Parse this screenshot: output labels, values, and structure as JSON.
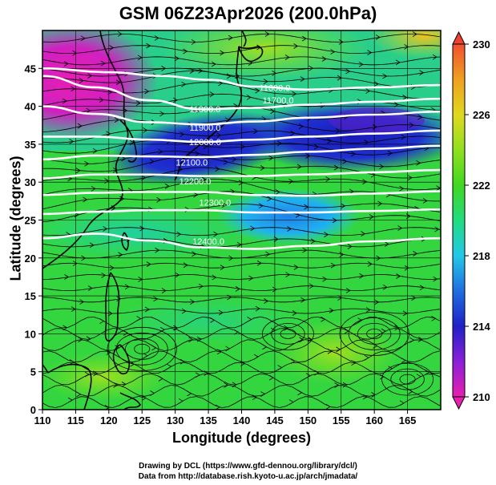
{
  "chart_data": {
    "type": "heatmap",
    "title": "GSM 06Z23Apr2026 (200.0hPa)",
    "xlabel": "Longitude (degrees)",
    "ylabel": "Latitude  (degrees)",
    "xlim": [
      110,
      170
    ],
    "ylim": [
      0,
      50
    ],
    "x_ticks": [
      110,
      115,
      120,
      125,
      130,
      135,
      140,
      145,
      150,
      155,
      160,
      165
    ],
    "y_ticks": [
      0,
      5,
      10,
      15,
      20,
      25,
      30,
      35,
      40,
      45
    ],
    "colorbar": {
      "min": 210,
      "max": 230,
      "ticks": [
        210,
        214,
        218,
        222,
        226,
        230
      ],
      "colors": [
        "#e81fb0",
        "#8a1fd8",
        "#2020c8",
        "#1e6ee0",
        "#22c8e8",
        "#22dc80",
        "#40d820",
        "#90e020",
        "#e0d820",
        "#f0a020",
        "#f05030"
      ]
    },
    "contours": [
      {
        "label": "11600.0",
        "label_lon": 145,
        "label_lat": 42,
        "points": [
          [
            110,
            45
          ],
          [
            120,
            44.5
          ],
          [
            128,
            44
          ],
          [
            135,
            43.5
          ],
          [
            142,
            42.6
          ],
          [
            150,
            42.2
          ],
          [
            160,
            42.5
          ],
          [
            170,
            42.8
          ]
        ]
      },
      {
        "label": "11700.0",
        "label_lon": 145.5,
        "label_lat": 40.4,
        "points": [
          [
            110,
            44
          ],
          [
            118,
            42.5
          ],
          [
            126,
            40.8
          ],
          [
            134,
            39.6
          ],
          [
            142,
            39.8
          ],
          [
            150,
            40.2
          ],
          [
            160,
            40.6
          ],
          [
            170,
            41
          ]
        ]
      },
      {
        "label": "11800.0",
        "label_lon": 134.5,
        "label_lat": 39.2,
        "points": [
          [
            110,
            40
          ],
          [
            118,
            39
          ],
          [
            126,
            37.9
          ],
          [
            134,
            37.6
          ],
          [
            142,
            38
          ],
          [
            150,
            38.5
          ],
          [
            160,
            38.9
          ],
          [
            170,
            39.3
          ]
        ]
      },
      {
        "label": "11900.0",
        "label_lon": 134.5,
        "label_lat": 36.8,
        "points": [
          [
            110,
            36
          ],
          [
            118,
            36
          ],
          [
            126,
            35.6
          ],
          [
            134,
            35.3
          ],
          [
            142,
            35.6
          ],
          [
            150,
            36
          ],
          [
            160,
            36.4
          ],
          [
            170,
            36.8
          ]
        ]
      },
      {
        "label": "12000.0",
        "label_lon": 134.5,
        "label_lat": 34.9,
        "points": [
          [
            110,
            33
          ],
          [
            118,
            33.5
          ],
          [
            126,
            33.4
          ],
          [
            134,
            33.3
          ],
          [
            142,
            33.6
          ],
          [
            150,
            34
          ],
          [
            160,
            34.4
          ],
          [
            170,
            34.8
          ]
        ]
      },
      {
        "label": "12100.0",
        "label_lon": 132.5,
        "label_lat": 32.2,
        "points": [
          [
            110,
            30.5
          ],
          [
            118,
            31
          ],
          [
            126,
            31
          ],
          [
            134,
            30.8
          ],
          [
            142,
            30.8
          ],
          [
            150,
            31
          ],
          [
            160,
            31.3
          ],
          [
            170,
            31.6
          ]
        ]
      },
      {
        "label": "12200.0",
        "label_lon": 133,
        "label_lat": 29.7,
        "points": [
          [
            110,
            28.3
          ],
          [
            118,
            28.6
          ],
          [
            126,
            28.7
          ],
          [
            134,
            28.7
          ],
          [
            142,
            28.3
          ],
          [
            150,
            28.2
          ],
          [
            160,
            28.5
          ],
          [
            170,
            28.8
          ]
        ]
      },
      {
        "label": "12300.0",
        "label_lon": 136,
        "label_lat": 26.9,
        "points": [
          [
            110,
            25.8
          ],
          [
            118,
            26.1
          ],
          [
            126,
            26.3
          ],
          [
            134,
            26.3
          ],
          [
            142,
            26
          ],
          [
            150,
            26
          ],
          [
            160,
            26.2
          ],
          [
            170,
            26.4
          ]
        ]
      },
      {
        "label": "12400.0",
        "label_lon": 135,
        "label_lat": 21.8,
        "points": [
          [
            110,
            22.6
          ],
          [
            118,
            23.2
          ],
          [
            126,
            22.3
          ],
          [
            134,
            21.4
          ],
          [
            142,
            21.2
          ],
          [
            150,
            21.6
          ],
          [
            160,
            22.2
          ],
          [
            170,
            22.6
          ]
        ]
      }
    ]
  },
  "credits": {
    "line1": "Drawing by DCL (https://www.gfd-dennou.org/library/dcl/)",
    "line2": "Data from http://database.rish.kyoto-u.ac.jp/arch/jmadata/"
  }
}
